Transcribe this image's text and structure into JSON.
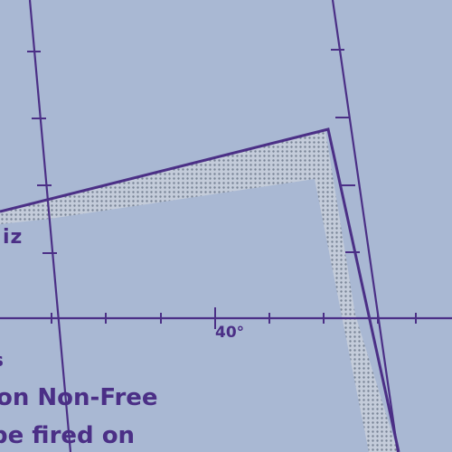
{
  "map": {
    "background_color": "#a9b8d3",
    "line_color": "#4b2f86",
    "hatch_color": "#6f7a8a",
    "hatch_fill_color": "#c9d0db",
    "zone_label_fragment": "iz",
    "edge_fragment": "s",
    "latitude_label": "40°",
    "note_lines": [
      "on Non-Free",
      "be fired on"
    ]
  }
}
